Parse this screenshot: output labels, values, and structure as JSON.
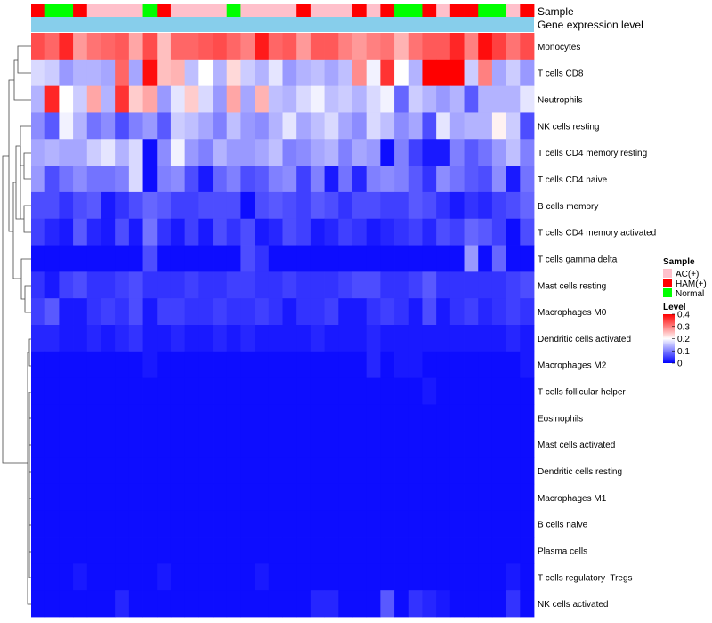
{
  "annotations": {
    "sample_label": "Sample",
    "expression_label": "Gene expression level",
    "expression_bar_color": "#87ceeb"
  },
  "legend": {
    "sample_title": "Sample",
    "sample_items": [
      {
        "label": "AC(+)",
        "color": "#ffc0cb"
      },
      {
        "label": "HAM(+)",
        "color": "#ff0000"
      },
      {
        "label": "Normal",
        "color": "#00ff00"
      }
    ],
    "level_title": "Level",
    "level_ticks": [
      "0.4",
      "0.3",
      "0.2",
      "0.1",
      "0"
    ]
  },
  "chart_data": {
    "type": "heatmap",
    "title": "",
    "color_scale": {
      "min": 0,
      "max": 0.4,
      "low": "#0000ff",
      "mid": "#ffffff",
      "high": "#ff0000",
      "mid_value": 0.2
    },
    "sample_groups": [
      "HAM(+)",
      "Normal",
      "Normal",
      "HAM(+)",
      "AC(+)",
      "AC(+)",
      "AC(+)",
      "AC(+)",
      "Normal",
      "HAM(+)",
      "AC(+)",
      "AC(+)",
      "AC(+)",
      "AC(+)",
      "Normal",
      "AC(+)",
      "AC(+)",
      "AC(+)",
      "AC(+)",
      "HAM(+)",
      "AC(+)",
      "AC(+)",
      "AC(+)",
      "HAM(+)",
      "AC(+)",
      "HAM(+)",
      "Normal",
      "Normal",
      "HAM(+)",
      "AC(+)",
      "HAM(+)",
      "HAM(+)",
      "Normal",
      "Normal",
      "AC(+)",
      "HAM(+)"
    ],
    "rows": [
      {
        "name": "Monocytes",
        "values": [
          0.34,
          0.32,
          0.37,
          0.28,
          0.31,
          0.32,
          0.33,
          0.27,
          0.34,
          0.25,
          0.32,
          0.32,
          0.33,
          0.34,
          0.32,
          0.3,
          0.38,
          0.32,
          0.33,
          0.28,
          0.33,
          0.33,
          0.3,
          0.28,
          0.3,
          0.31,
          0.26,
          0.31,
          0.33,
          0.33,
          0.37,
          0.3,
          0.39,
          0.35,
          0.31,
          0.34
        ]
      },
      {
        "name": "T cells CD8",
        "values": [
          0.17,
          0.16,
          0.12,
          0.14,
          0.14,
          0.13,
          0.32,
          0.13,
          0.39,
          0.25,
          0.26,
          0.15,
          0.2,
          0.14,
          0.23,
          0.16,
          0.14,
          0.18,
          0.12,
          0.14,
          0.15,
          0.13,
          0.15,
          0.29,
          0.19,
          0.36,
          0.2,
          0.14,
          0.4,
          0.4,
          0.4,
          0.16,
          0.3,
          0.13,
          0.16,
          0.12
        ]
      },
      {
        "name": "Neutrophils",
        "values": [
          0.14,
          0.37,
          0.2,
          0.16,
          0.27,
          0.14,
          0.36,
          0.24,
          0.27,
          0.12,
          0.18,
          0.24,
          0.17,
          0.12,
          0.27,
          0.13,
          0.26,
          0.15,
          0.14,
          0.17,
          0.19,
          0.15,
          0.16,
          0.14,
          0.17,
          0.19,
          0.08,
          0.16,
          0.14,
          0.12,
          0.14,
          0.07,
          0.14,
          0.14,
          0.14,
          0.18
        ]
      },
      {
        "name": "NK cells resting",
        "values": [
          0.11,
          0.07,
          0.19,
          0.14,
          0.09,
          0.11,
          0.06,
          0.1,
          0.12,
          0.07,
          0.16,
          0.15,
          0.13,
          0.1,
          0.15,
          0.12,
          0.11,
          0.14,
          0.18,
          0.13,
          0.15,
          0.17,
          0.13,
          0.11,
          0.17,
          0.15,
          0.11,
          0.13,
          0.06,
          0.18,
          0.13,
          0.14,
          0.14,
          0.21,
          0.16,
          0.06
        ]
      },
      {
        "name": "T cells CD4 memory resting",
        "values": [
          0.13,
          0.14,
          0.13,
          0.13,
          0.16,
          0.18,
          0.14,
          0.17,
          0.01,
          0.11,
          0.19,
          0.12,
          0.1,
          0.14,
          0.12,
          0.12,
          0.13,
          0.15,
          0.1,
          0.11,
          0.13,
          0.14,
          0.1,
          0.13,
          0.12,
          0.01,
          0.1,
          0.05,
          0.02,
          0.02,
          0.1,
          0.07,
          0.09,
          0.12,
          0.15,
          0.1
        ]
      },
      {
        "name": "T cells CD4 naive",
        "values": [
          0.12,
          0.06,
          0.09,
          0.11,
          0.09,
          0.09,
          0.1,
          0.17,
          0.01,
          0.1,
          0.11,
          0.06,
          0.02,
          0.08,
          0.1,
          0.06,
          0.07,
          0.1,
          0.11,
          0.05,
          0.1,
          0.02,
          0.09,
          0.03,
          0.1,
          0.11,
          0.1,
          0.07,
          0.04,
          0.11,
          0.09,
          0.07,
          0.06,
          0.11,
          0.02,
          0.09
        ]
      },
      {
        "name": "B cells memory",
        "values": [
          0.06,
          0.06,
          0.04,
          0.06,
          0.07,
          0.02,
          0.04,
          0.06,
          0.08,
          0.07,
          0.05,
          0.05,
          0.06,
          0.06,
          0.06,
          0.01,
          0.06,
          0.07,
          0.06,
          0.05,
          0.07,
          0.06,
          0.04,
          0.06,
          0.06,
          0.05,
          0.05,
          0.07,
          0.06,
          0.04,
          0.02,
          0.04,
          0.03,
          0.05,
          0.06,
          0.08
        ]
      },
      {
        "name": "T cells CD4 memory activated",
        "values": [
          0.05,
          0.03,
          0.02,
          0.07,
          0.03,
          0.02,
          0.06,
          0.02,
          0.09,
          0.04,
          0.02,
          0.05,
          0.02,
          0.06,
          0.04,
          0.06,
          0.02,
          0.03,
          0.06,
          0.05,
          0.02,
          0.03,
          0.05,
          0.04,
          0.02,
          0.03,
          0.04,
          0.05,
          0.03,
          0.06,
          0.05,
          0.08,
          0.07,
          0.05,
          0.01,
          0.06
        ]
      },
      {
        "name": "T cells gamma delta",
        "values": [
          0.01,
          0.01,
          0.01,
          0.01,
          0.01,
          0.01,
          0.01,
          0.01,
          0.06,
          0.01,
          0.01,
          0.01,
          0.01,
          0.01,
          0.01,
          0.06,
          0.04,
          0.01,
          0.01,
          0.01,
          0.01,
          0.01,
          0.01,
          0.01,
          0.01,
          0.01,
          0.01,
          0.01,
          0.01,
          0.01,
          0.01,
          0.12,
          0.01,
          0.08,
          0.01,
          0.01
        ]
      },
      {
        "name": "Mast cells resting",
        "values": [
          0.04,
          0.02,
          0.05,
          0.06,
          0.04,
          0.04,
          0.05,
          0.06,
          0.04,
          0.04,
          0.04,
          0.05,
          0.04,
          0.04,
          0.05,
          0.05,
          0.04,
          0.04,
          0.05,
          0.04,
          0.04,
          0.04,
          0.05,
          0.06,
          0.06,
          0.04,
          0.04,
          0.05,
          0.07,
          0.04,
          0.04,
          0.04,
          0.04,
          0.04,
          0.05,
          0.06
        ]
      },
      {
        "name": "Macrophages M0",
        "values": [
          0.05,
          0.07,
          0.02,
          0.02,
          0.04,
          0.05,
          0.04,
          0.06,
          0.02,
          0.05,
          0.05,
          0.04,
          0.04,
          0.05,
          0.04,
          0.04,
          0.05,
          0.04,
          0.02,
          0.04,
          0.04,
          0.05,
          0.02,
          0.02,
          0.04,
          0.05,
          0.04,
          0.02,
          0.06,
          0.02,
          0.04,
          0.05,
          0.03,
          0.04,
          0.05,
          0.04
        ]
      },
      {
        "name": "Dendritic cells activated",
        "values": [
          0.03,
          0.03,
          0.02,
          0.02,
          0.03,
          0.02,
          0.03,
          0.04,
          0.02,
          0.02,
          0.03,
          0.02,
          0.02,
          0.03,
          0.02,
          0.03,
          0.02,
          0.02,
          0.02,
          0.02,
          0.03,
          0.02,
          0.02,
          0.02,
          0.03,
          0.02,
          0.02,
          0.02,
          0.02,
          0.02,
          0.02,
          0.02,
          0.02,
          0.02,
          0.03,
          0.02
        ]
      },
      {
        "name": "Macrophages M2",
        "values": [
          0.01,
          0.01,
          0.01,
          0.01,
          0.01,
          0.01,
          0.01,
          0.01,
          0.02,
          0.01,
          0.01,
          0.01,
          0.01,
          0.01,
          0.01,
          0.01,
          0.01,
          0.01,
          0.01,
          0.01,
          0.01,
          0.01,
          0.01,
          0.01,
          0.03,
          0.01,
          0.02,
          0.02,
          0.01,
          0.01,
          0.01,
          0.01,
          0.01,
          0.01,
          0.01,
          0.02
        ]
      },
      {
        "name": "T cells follicular helper",
        "values": [
          0.01,
          0.01,
          0.01,
          0.01,
          0.01,
          0.01,
          0.01,
          0.01,
          0.01,
          0.01,
          0.01,
          0.01,
          0.01,
          0.01,
          0.01,
          0.01,
          0.01,
          0.01,
          0.01,
          0.01,
          0.01,
          0.01,
          0.01,
          0.01,
          0.01,
          0.01,
          0.01,
          0.01,
          0.02,
          0.01,
          0.01,
          0.01,
          0.01,
          0.01,
          0.01,
          0.01
        ]
      },
      {
        "name": "Eosinophils",
        "values": [
          0.01,
          0.01,
          0.01,
          0.01,
          0.01,
          0.01,
          0.01,
          0.01,
          0.01,
          0.01,
          0.01,
          0.01,
          0.01,
          0.01,
          0.01,
          0.01,
          0.01,
          0.01,
          0.01,
          0.01,
          0.01,
          0.01,
          0.01,
          0.01,
          0.01,
          0.01,
          0.01,
          0.01,
          0.01,
          0.01,
          0.01,
          0.01,
          0.01,
          0.01,
          0.01,
          0.01
        ]
      },
      {
        "name": "Mast cells activated",
        "values": [
          0.01,
          0.01,
          0.01,
          0.01,
          0.01,
          0.01,
          0.01,
          0.01,
          0.01,
          0.01,
          0.01,
          0.01,
          0.01,
          0.01,
          0.01,
          0.01,
          0.01,
          0.01,
          0.01,
          0.01,
          0.01,
          0.01,
          0.01,
          0.01,
          0.01,
          0.01,
          0.01,
          0.01,
          0.01,
          0.01,
          0.01,
          0.01,
          0.01,
          0.01,
          0.01,
          0.01
        ]
      },
      {
        "name": "Dendritic cells resting",
        "values": [
          0.01,
          0.01,
          0.01,
          0.01,
          0.01,
          0.01,
          0.01,
          0.01,
          0.01,
          0.01,
          0.01,
          0.01,
          0.01,
          0.01,
          0.01,
          0.01,
          0.01,
          0.01,
          0.01,
          0.01,
          0.01,
          0.01,
          0.01,
          0.01,
          0.01,
          0.01,
          0.01,
          0.01,
          0.01,
          0.01,
          0.01,
          0.01,
          0.01,
          0.01,
          0.01,
          0.01
        ]
      },
      {
        "name": "Macrophages M1",
        "values": [
          0.01,
          0.01,
          0.01,
          0.01,
          0.01,
          0.01,
          0.01,
          0.01,
          0.01,
          0.01,
          0.01,
          0.01,
          0.01,
          0.01,
          0.01,
          0.01,
          0.01,
          0.01,
          0.01,
          0.01,
          0.01,
          0.01,
          0.01,
          0.01,
          0.01,
          0.01,
          0.01,
          0.01,
          0.01,
          0.01,
          0.01,
          0.01,
          0.01,
          0.01,
          0.01,
          0.01
        ]
      },
      {
        "name": "B cells naive",
        "values": [
          0.01,
          0.01,
          0.01,
          0.01,
          0.01,
          0.01,
          0.01,
          0.01,
          0.01,
          0.01,
          0.01,
          0.01,
          0.01,
          0.01,
          0.01,
          0.01,
          0.01,
          0.01,
          0.01,
          0.01,
          0.01,
          0.01,
          0.01,
          0.01,
          0.01,
          0.01,
          0.01,
          0.01,
          0.01,
          0.01,
          0.01,
          0.01,
          0.01,
          0.01,
          0.01,
          0.01
        ]
      },
      {
        "name": "Plasma cells",
        "values": [
          0.01,
          0.01,
          0.01,
          0.01,
          0.01,
          0.01,
          0.01,
          0.01,
          0.01,
          0.01,
          0.01,
          0.01,
          0.01,
          0.01,
          0.01,
          0.01,
          0.01,
          0.01,
          0.01,
          0.01,
          0.01,
          0.01,
          0.01,
          0.01,
          0.01,
          0.01,
          0.01,
          0.01,
          0.01,
          0.01,
          0.01,
          0.01,
          0.01,
          0.01,
          0.01,
          0.01
        ]
      },
      {
        "name": "T cells regulatory  Tregs",
        "values": [
          0.01,
          0.01,
          0.01,
          0.02,
          0.01,
          0.01,
          0.01,
          0.01,
          0.01,
          0.02,
          0.01,
          0.01,
          0.01,
          0.01,
          0.01,
          0.01,
          0.02,
          0.01,
          0.01,
          0.01,
          0.01,
          0.01,
          0.01,
          0.01,
          0.01,
          0.01,
          0.01,
          0.01,
          0.01,
          0.01,
          0.01,
          0.01,
          0.01,
          0.01,
          0.02,
          0.01
        ]
      },
      {
        "name": "NK cells activated",
        "values": [
          0.01,
          0.01,
          0.01,
          0.01,
          0.01,
          0.01,
          0.03,
          0.01,
          0.01,
          0.01,
          0.01,
          0.01,
          0.01,
          0.01,
          0.01,
          0.01,
          0.01,
          0.01,
          0.01,
          0.01,
          0.03,
          0.03,
          0.01,
          0.01,
          0.01,
          0.07,
          0.01,
          0.04,
          0.03,
          0.02,
          0.01,
          0.01,
          0.01,
          0.01,
          0.04,
          0.01
        ]
      }
    ]
  }
}
